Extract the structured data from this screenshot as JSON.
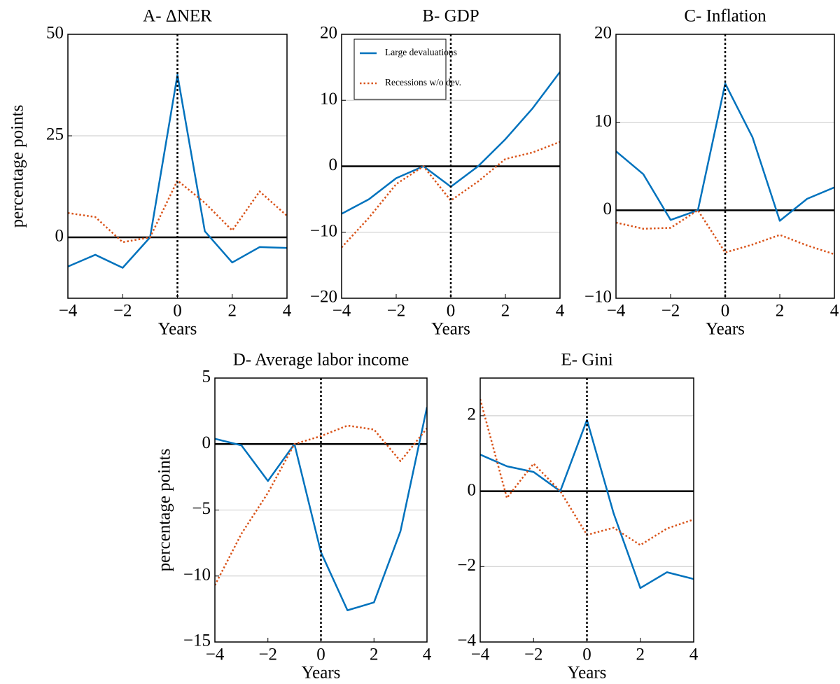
{
  "chart_data": [
    {
      "type": "line",
      "title": "A- ΔNER",
      "xlabel": "Years",
      "ylabel": "percentage points",
      "x": [
        -4,
        -3,
        -2,
        -1,
        0,
        1,
        2,
        3,
        4
      ],
      "series": [
        {
          "color": "#0072bd",
          "style": "solid",
          "values": [
            -7.2,
            -4.3,
            -7.5,
            0,
            40,
            1.5,
            -6.2,
            -2.4,
            -2.6
          ]
        },
        {
          "color": "#d95319",
          "style": "dotted",
          "values": [
            6,
            5,
            -1.2,
            0,
            14,
            8.5,
            1.7,
            11.3,
            5.3
          ]
        }
      ],
      "xlim": [
        -4,
        4
      ],
      "ylim": [
        -15,
        50
      ],
      "xticks": [
        {
          "value": -4,
          "label": "−4"
        },
        {
          "value": -2,
          "label": "−2"
        },
        0,
        2,
        4
      ],
      "yticks": [
        0,
        25,
        50
      ],
      "grid": true,
      "hline": 0,
      "vline": 0
    },
    {
      "type": "line",
      "title": "B- GDP",
      "xlabel": "Years",
      "x": [
        -4,
        -3,
        -2,
        -1,
        0,
        1,
        2,
        3,
        4
      ],
      "series": [
        {
          "name": "Large devaluations",
          "color": "#0072bd",
          "style": "solid",
          "values": [
            -7.2,
            -5,
            -1.8,
            0,
            -3.1,
            0,
            4.1,
            8.8,
            14.3
          ]
        },
        {
          "name": "Recessions w/o dev.",
          "color": "#d95319",
          "style": "dotted",
          "values": [
            -12.3,
            -7.8,
            -2.7,
            0,
            -5.2,
            -2.3,
            1.1,
            2.1,
            3.7
          ]
        }
      ],
      "xlim": [
        -4,
        4
      ],
      "ylim": [
        -20,
        20
      ],
      "xticks": [
        {
          "value": -4,
          "label": "−4"
        },
        {
          "value": -2,
          "label": "−2"
        },
        0,
        2,
        4
      ],
      "yticks": [
        {
          "value": -20,
          "label": "−20"
        },
        {
          "value": -10,
          "label": "−10"
        },
        0,
        10,
        20
      ],
      "grid": true,
      "hline": 0,
      "vline": 0,
      "legend": "upper left"
    },
    {
      "type": "line",
      "title": "C- Inflation",
      "xlabel": "Years",
      "x": [
        -4,
        -3,
        -2,
        -1,
        0,
        1,
        2,
        3,
        4
      ],
      "series": [
        {
          "color": "#0072bd",
          "style": "solid",
          "values": [
            6.7,
            4.1,
            -1.1,
            0,
            14.4,
            8.3,
            -1.2,
            1.3,
            2.6
          ]
        },
        {
          "color": "#d95319",
          "style": "dotted",
          "values": [
            -1.4,
            -2.1,
            -2,
            0,
            -4.8,
            -3.9,
            -2.8,
            -4,
            -5
          ]
        }
      ],
      "xlim": [
        -4,
        4
      ],
      "ylim": [
        -10,
        20
      ],
      "xticks": [
        {
          "value": -4,
          "label": "−4"
        },
        {
          "value": -2,
          "label": "−2"
        },
        0,
        2,
        4
      ],
      "yticks": [
        {
          "value": -10,
          "label": "−10"
        },
        0,
        10,
        20
      ],
      "grid": true,
      "hline": 0,
      "vline": 0
    },
    {
      "type": "line",
      "title": "D- Average labor income",
      "xlabel": "Years",
      "ylabel": "percentage points",
      "x": [
        -4,
        -3,
        -2,
        -1,
        0,
        1,
        2,
        3,
        4
      ],
      "series": [
        {
          "color": "#0072bd",
          "style": "solid",
          "values": [
            0.4,
            -0.1,
            -2.8,
            0,
            -8.2,
            -12.6,
            -12,
            -6.6,
            2.8
          ]
        },
        {
          "color": "#d95319",
          "style": "dotted",
          "values": [
            -10.7,
            -6.8,
            -3.7,
            0,
            0.6,
            1.4,
            1.1,
            -1.3,
            1.2
          ]
        }
      ],
      "xlim": [
        -4,
        4
      ],
      "ylim": [
        -15,
        5
      ],
      "xticks": [
        {
          "value": -4,
          "label": "−4"
        },
        {
          "value": -2,
          "label": "−2"
        },
        0,
        2,
        4
      ],
      "yticks": [
        {
          "value": -15,
          "label": "−15"
        },
        {
          "value": -10,
          "label": "−10"
        },
        {
          "value": -5,
          "label": "−5"
        },
        0,
        5
      ],
      "grid": true,
      "hline": 0,
      "vline": 0
    },
    {
      "type": "line",
      "title": "E- Gini",
      "xlabel": "Years",
      "x": [
        -4,
        -3,
        -2,
        -1,
        0,
        1,
        2,
        3,
        4
      ],
      "series": [
        {
          "color": "#0072bd",
          "style": "solid",
          "values": [
            0.97,
            0.66,
            0.51,
            0,
            1.89,
            -0.59,
            -2.57,
            -2.15,
            -2.33
          ]
        },
        {
          "color": "#d95319",
          "style": "dotted",
          "values": [
            2.44,
            -0.18,
            0.73,
            0,
            -1.16,
            -0.97,
            -1.43,
            -0.99,
            -0.75
          ]
        }
      ],
      "xlim": [
        -4,
        4
      ],
      "ylim": [
        -4,
        3
      ],
      "xticks": [
        {
          "value": -4,
          "label": "−4"
        },
        {
          "value": -2,
          "label": "−2"
        },
        0,
        2,
        4
      ],
      "yticks": [
        {
          "value": -4,
          "label": "−4"
        },
        {
          "value": -2,
          "label": "−2"
        },
        0,
        2
      ],
      "grid": true,
      "hline": 0,
      "vline": 0
    }
  ]
}
